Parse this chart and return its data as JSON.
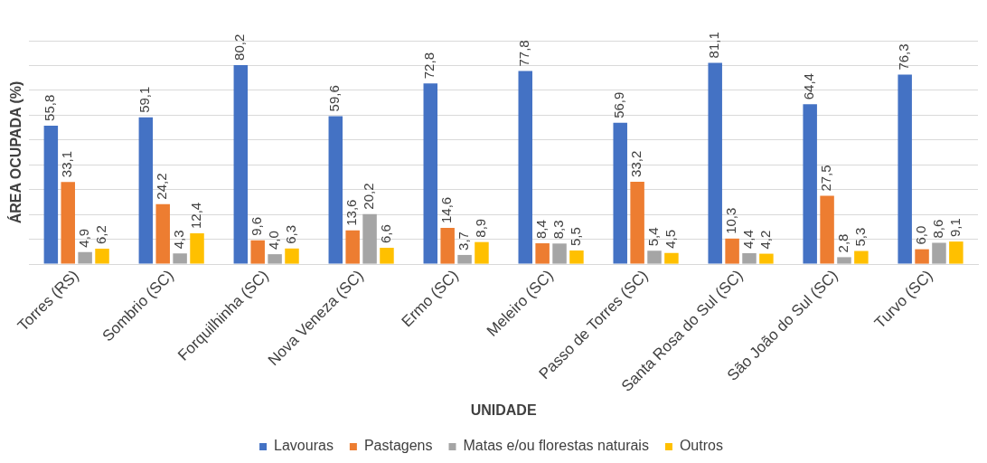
{
  "chart_data": {
    "type": "bar",
    "xlabel": "UNIDADE",
    "ylabel": "ÁREA OCUPADA (%)",
    "categories": [
      "Torres (RS)",
      "Sombrio (SC)",
      "Forquilhinha (SC)",
      "Nova Veneza (SC)",
      "Ermo (SC)",
      "Meleiro (SC)",
      "Passo de Torres (SC)",
      "Santa Rosa do Sul (SC)",
      "São João do Sul (SC)",
      "Turvo (SC)"
    ],
    "series": [
      {
        "name": "Lavouras",
        "color": "#4472c4",
        "values": [
          55.8,
          59.1,
          80.2,
          59.6,
          72.8,
          77.8,
          56.9,
          81.1,
          64.4,
          76.3
        ],
        "value_labels": [
          "55,8",
          "59,1",
          "80,2",
          "59,6",
          "72,8",
          "77,8",
          "56,9",
          "81,1",
          "64,4",
          "76,3"
        ]
      },
      {
        "name": "Pastagens",
        "color": "#ed7d31",
        "values": [
          33.1,
          24.2,
          9.6,
          13.6,
          14.6,
          8.4,
          33.2,
          10.3,
          27.5,
          6.0
        ],
        "value_labels": [
          "33,1",
          "24,2",
          "9,6",
          "13,6",
          "14,6",
          "8,4",
          "33,2",
          "10,3",
          "27,5",
          "6,0"
        ]
      },
      {
        "name": "Matas e/ou florestas naturais",
        "color": "#a5a5a5",
        "values": [
          4.9,
          4.3,
          4.0,
          20.2,
          3.7,
          8.3,
          5.4,
          4.4,
          2.8,
          8.6
        ],
        "value_labels": [
          "4,9",
          "4,3",
          "4,0",
          "20,2",
          "3,7",
          "8,3",
          "5,4",
          "4,4",
          "2,8",
          "8,6"
        ]
      },
      {
        "name": "Outros",
        "color": "#ffc000",
        "values": [
          6.2,
          12.4,
          6.3,
          6.6,
          8.9,
          5.5,
          4.5,
          4.2,
          5.3,
          9.1
        ],
        "value_labels": [
          "6,2",
          "12,4",
          "6,3",
          "6,6",
          "8,9",
          "5,5",
          "4,5",
          "4,2",
          "5,3",
          "9,1"
        ]
      }
    ],
    "ylim": [
      0,
      90
    ],
    "yticks": [
      {
        "value": 0,
        "label": null
      },
      {
        "value": 10,
        "label": null
      },
      {
        "value": 20,
        "label": null
      },
      {
        "value": 30,
        "label": null
      },
      {
        "value": 40,
        "label": null
      },
      {
        "value": 50,
        "label": null
      },
      {
        "value": 60,
        "label": null
      },
      {
        "value": 70,
        "label": null
      },
      {
        "value": 80,
        "label": null
      },
      {
        "value": 90,
        "label": null
      }
    ],
    "tick_labels": "x",
    "grid": "y",
    "legend": "bottom"
  }
}
